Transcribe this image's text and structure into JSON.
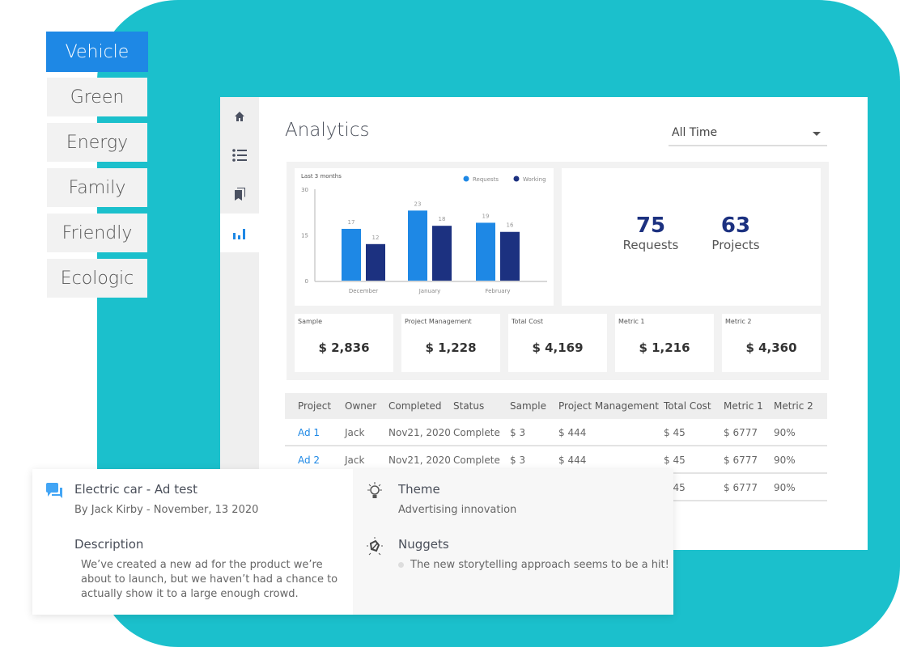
{
  "tags": [
    {
      "label": "Vehicle",
      "active": true
    },
    {
      "label": "Green"
    },
    {
      "label": "Energy"
    },
    {
      "label": "Family"
    },
    {
      "label": "Friendly"
    },
    {
      "label": "Ecologic"
    }
  ],
  "sidebar": {
    "items": [
      {
        "icon": "home-icon"
      },
      {
        "icon": "list-icon"
      },
      {
        "icon": "bookmarks-icon"
      },
      {
        "icon": "bar-chart-icon",
        "active": true
      }
    ]
  },
  "header": {
    "title": "Analytics",
    "range_select": "All Time"
  },
  "chart_data": {
    "type": "bar",
    "title": "Last 3 months",
    "categories": [
      "December",
      "January",
      "February"
    ],
    "series": [
      {
        "name": "Requests",
        "color": "#1e88e5",
        "values": [
          17,
          23,
          19
        ]
      },
      {
        "name": "Working",
        "color": "#1c3180",
        "values": [
          12,
          18,
          16
        ]
      }
    ],
    "yticks": [
      0,
      15,
      30
    ],
    "ylim": [
      0,
      30
    ],
    "legend": "top-right",
    "grid": false
  },
  "stats": [
    {
      "value": "75",
      "label": "Requests"
    },
    {
      "value": "63",
      "label": "Projects"
    }
  ],
  "metrics": [
    {
      "label": "Sample",
      "value": "$ 2,836"
    },
    {
      "label": "Project Management",
      "value": "$ 1,228"
    },
    {
      "label": "Total Cost",
      "value": "$ 4,169"
    },
    {
      "label": "Metric 1",
      "value": "$ 1,216"
    },
    {
      "label": "Metric 2",
      "value": "$ 4,360"
    }
  ],
  "table": {
    "columns": [
      "Project",
      "Owner",
      "Completed",
      "Status",
      "Sample",
      "Project Management",
      "Total Cost",
      "Metric 1",
      "Metric 2"
    ],
    "rows": [
      [
        "Ad 1",
        "Jack",
        "Nov21, 2020",
        "Complete",
        "$ 3",
        "$ 444",
        "$ 45",
        "$ 6777",
        "90%"
      ],
      [
        "Ad 2",
        "Jack",
        "Nov21, 2020",
        "Complete",
        "$ 3",
        "$ 444",
        "$ 45",
        "$ 6777",
        "90%"
      ],
      [
        "",
        "",
        "",
        "",
        "",
        "",
        "$ 45",
        "$ 6777",
        "90%"
      ]
    ]
  },
  "detail": {
    "title": "Electric car - Ad test",
    "byline": "By Jack Kirby - November, 13 2020",
    "description_heading": "Description",
    "description": "We’ve created a new ad for the product we’re about to launch, but we haven’t had a chance to actually show it to a large enough crowd.",
    "theme_heading": "Theme",
    "theme": "Advertising innovation",
    "nuggets_heading": "Nuggets",
    "nuggets": [
      "The new storytelling approach seems to be a hit!"
    ]
  },
  "colors": {
    "teal": "#1bc0cc",
    "accent": "#1e88e5",
    "navy": "#1c3180"
  }
}
